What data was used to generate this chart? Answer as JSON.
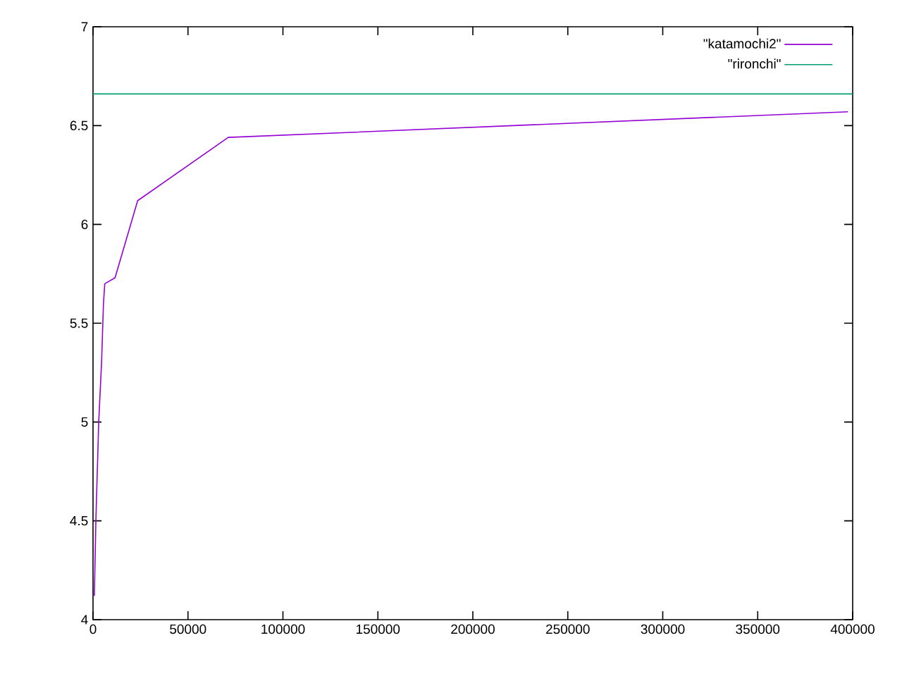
{
  "chart_data": {
    "type": "line",
    "xlim": [
      0,
      400000
    ],
    "ylim": [
      4,
      7
    ],
    "xticks": [
      0,
      50000,
      100000,
      150000,
      200000,
      250000,
      300000,
      350000,
      400000
    ],
    "yticks": [
      4,
      4.5,
      5,
      5.5,
      6,
      6.5,
      7
    ],
    "legend": "top right",
    "series": [
      {
        "name": "\"katamochi2\"",
        "color": "#9400d3",
        "x": [
          700,
          1500,
          3000,
          4500,
          5500,
          6200,
          11600,
          23500,
          71200,
          397500
        ],
        "values": [
          4.12,
          4.5,
          5.0,
          5.3,
          5.6,
          5.7,
          5.73,
          6.12,
          6.44,
          6.57
        ]
      },
      {
        "name": "\"rironchi\"",
        "color": "#009e73",
        "x": [
          0,
          400000
        ],
        "values": [
          6.66,
          6.66
        ]
      }
    ]
  }
}
